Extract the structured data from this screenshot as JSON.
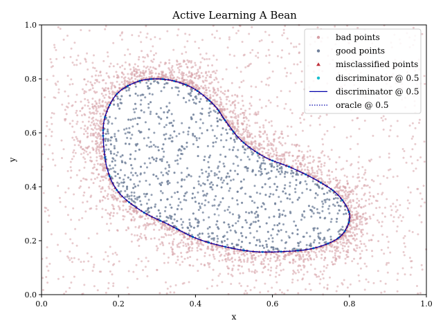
{
  "chart_data": {
    "type": "scatter",
    "title": "Active Learning A Bean",
    "xlabel": "x",
    "ylabel": "y",
    "xlim": [
      0,
      1
    ],
    "ylim": [
      0,
      1
    ],
    "xticks": [
      "0.0",
      "0.2",
      "0.4",
      "0.6",
      "0.8",
      "1.0"
    ],
    "yticks": [
      "0.0",
      "0.2",
      "0.4",
      "0.6",
      "0.8",
      "1.0"
    ],
    "grid": false,
    "legend_position": "top-right",
    "series": [
      {
        "name": "bad points",
        "kind": "scatter",
        "color": "#d6a0a6",
        "marker": "dot"
      },
      {
        "name": "good points",
        "kind": "scatter",
        "color": "#6f7f9a",
        "marker": "dot"
      },
      {
        "name": "misclassified points",
        "kind": "scatter",
        "color": "#c0303a",
        "marker": "triangle"
      },
      {
        "name": "discriminator @ 0.5",
        "kind": "scatter",
        "color": "#17becf",
        "marker": "dot"
      },
      {
        "name": "discriminator @ 0.5",
        "kind": "line",
        "color": "#0000aa",
        "style": "solid"
      },
      {
        "name": "oracle @ 0.5",
        "kind": "line",
        "color": "#0000aa",
        "style": "dotted"
      }
    ],
    "boundary": {
      "x": [
        0.16,
        0.17,
        0.2,
        0.25,
        0.3,
        0.35,
        0.4,
        0.45,
        0.48,
        0.52,
        0.58,
        0.65,
        0.72,
        0.77,
        0.8,
        0.79,
        0.76,
        0.7,
        0.63,
        0.55,
        0.47,
        0.4,
        0.33,
        0.26,
        0.2,
        0.17,
        0.16
      ],
      "y": [
        0.6,
        0.68,
        0.75,
        0.79,
        0.8,
        0.79,
        0.76,
        0.7,
        0.64,
        0.57,
        0.51,
        0.47,
        0.42,
        0.37,
        0.3,
        0.24,
        0.2,
        0.17,
        0.16,
        0.16,
        0.18,
        0.21,
        0.26,
        0.31,
        0.38,
        0.47,
        0.6
      ]
    }
  }
}
